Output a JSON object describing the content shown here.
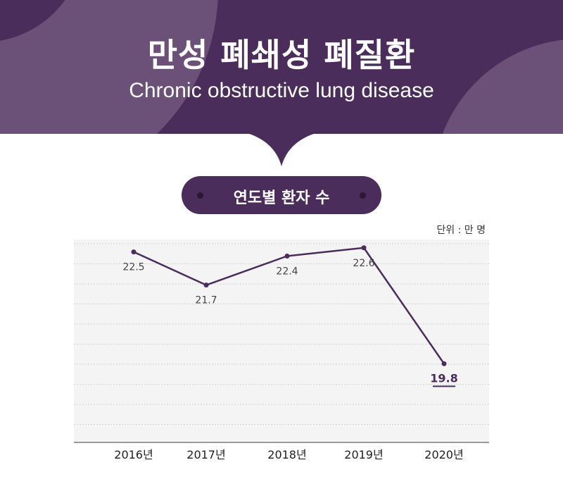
{
  "header": {
    "title_ko": "만성 폐쇄성 폐질환",
    "title_en": "Chronic obstructive lung disease"
  },
  "chart_section": {
    "pill_label": "연도별 환자 수",
    "unit_label": "단위 : 만 명"
  },
  "colors": {
    "header_bg": "#4a2d5a",
    "header_decor": "#6b5078",
    "line": "#4a2d5a",
    "plot_bg": "#f4f4f4",
    "highlight_label": "#4a2d5a"
  },
  "chart_data": {
    "type": "line",
    "categories": [
      "2016년",
      "2017년",
      "2018년",
      "2019년",
      "2020년"
    ],
    "values": [
      22.5,
      21.7,
      22.4,
      22.6,
      19.8
    ],
    "value_labels": [
      "22.5",
      "21.7",
      "22.4",
      "22.6",
      "19.8"
    ],
    "highlight_index": 4,
    "ylim": [
      17.9,
      22.8
    ],
    "grid": true,
    "legend": "none"
  }
}
